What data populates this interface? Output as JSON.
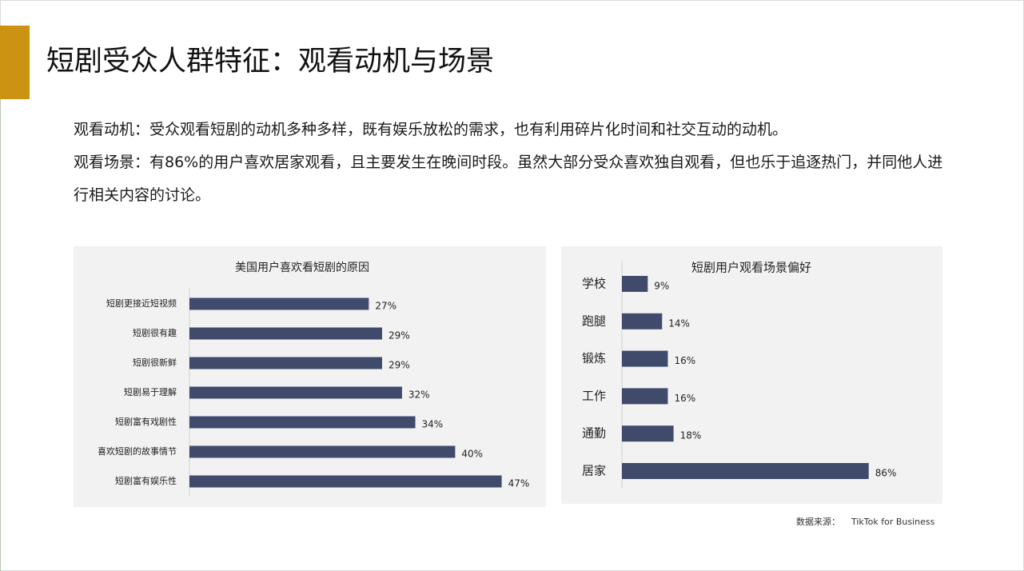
{
  "title": "短剧受众人群特征：观看动机与场景",
  "paragraphs": [
    "观看动机：受众观看短剧的动机多种多样，既有娱乐放松的需求，也有利用碎片化时间和社交互动的动机。",
    "观看场景：有86%的用户喜欢居家观看，且主要发生在晚间时段。虽然大部分受众喜欢独自观看，但也乐于追逐热门，并同他人进行相关内容的讨论。"
  ],
  "source": {
    "label": "数据来源：",
    "value": "TikTok for Business"
  },
  "colors": {
    "accent": "#cc9212",
    "bar": "#404b6c",
    "panel": "#f2f2f2"
  },
  "chart_data": [
    {
      "type": "bar",
      "orientation": "horizontal",
      "title": "美国用户喜欢看短剧的原因",
      "categories": [
        "短剧更接近短视频",
        "短剧很有趣",
        "短剧很新鲜",
        "短剧易于理解",
        "短剧富有戏剧性",
        "喜欢短剧的故事情节",
        "短剧富有娱乐性"
      ],
      "values": [
        27,
        29,
        29,
        32,
        34,
        40,
        47
      ],
      "labels": [
        "27%",
        "29%",
        "29%",
        "32%",
        "34%",
        "40%",
        "47%"
      ],
      "xlim": [
        0,
        50
      ],
      "grid": false,
      "legend": "none"
    },
    {
      "type": "bar",
      "orientation": "horizontal",
      "title": "短剧用户观看场景偏好",
      "categories": [
        "学校",
        "跑腿",
        "锻炼",
        "工作",
        "通勤",
        "居家"
      ],
      "values": [
        9,
        14,
        16,
        16,
        18,
        86
      ],
      "labels": [
        "9%",
        "14%",
        "16%",
        "16%",
        "18%",
        "86%"
      ],
      "xlim": [
        0,
        100
      ],
      "grid": false,
      "legend": "none"
    }
  ]
}
